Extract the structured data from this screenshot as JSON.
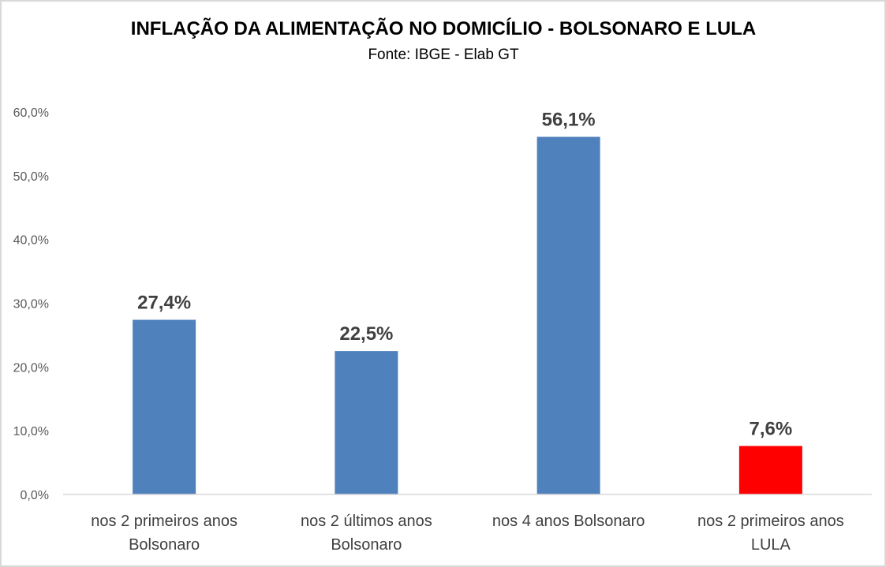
{
  "chart_data": {
    "type": "bar",
    "title": "INFLAÇÃO DA ALIMENTAÇÃO NO DOMICÍLIO - BOLSONARO E LULA",
    "subtitle": "Fonte: IBGE - Elab GT",
    "xlabel": "",
    "ylabel": "",
    "ylim": [
      0,
      60
    ],
    "yticks": [
      0,
      10,
      20,
      30,
      40,
      50,
      60
    ],
    "ytick_labels": [
      "0,0%",
      "10,0%",
      "20,0%",
      "30,0%",
      "40,0%",
      "50,0%",
      "60,0%"
    ],
    "grid": false,
    "categories": [
      [
        "nos 2 primeiros anos",
        "Bolsonaro"
      ],
      [
        "nos 2 últimos anos",
        "Bolsonaro"
      ],
      [
        "nos 4 anos Bolsonaro"
      ],
      [
        "nos 2 primeiros anos",
        "LULA"
      ]
    ],
    "values": [
      27.4,
      22.5,
      56.1,
      7.6
    ],
    "data_labels": [
      "27,4%",
      "22,5%",
      "56,1%",
      "7,6%"
    ],
    "colors": [
      "#4f81bd",
      "#4f81bd",
      "#4f81bd",
      "#ff0000"
    ]
  }
}
